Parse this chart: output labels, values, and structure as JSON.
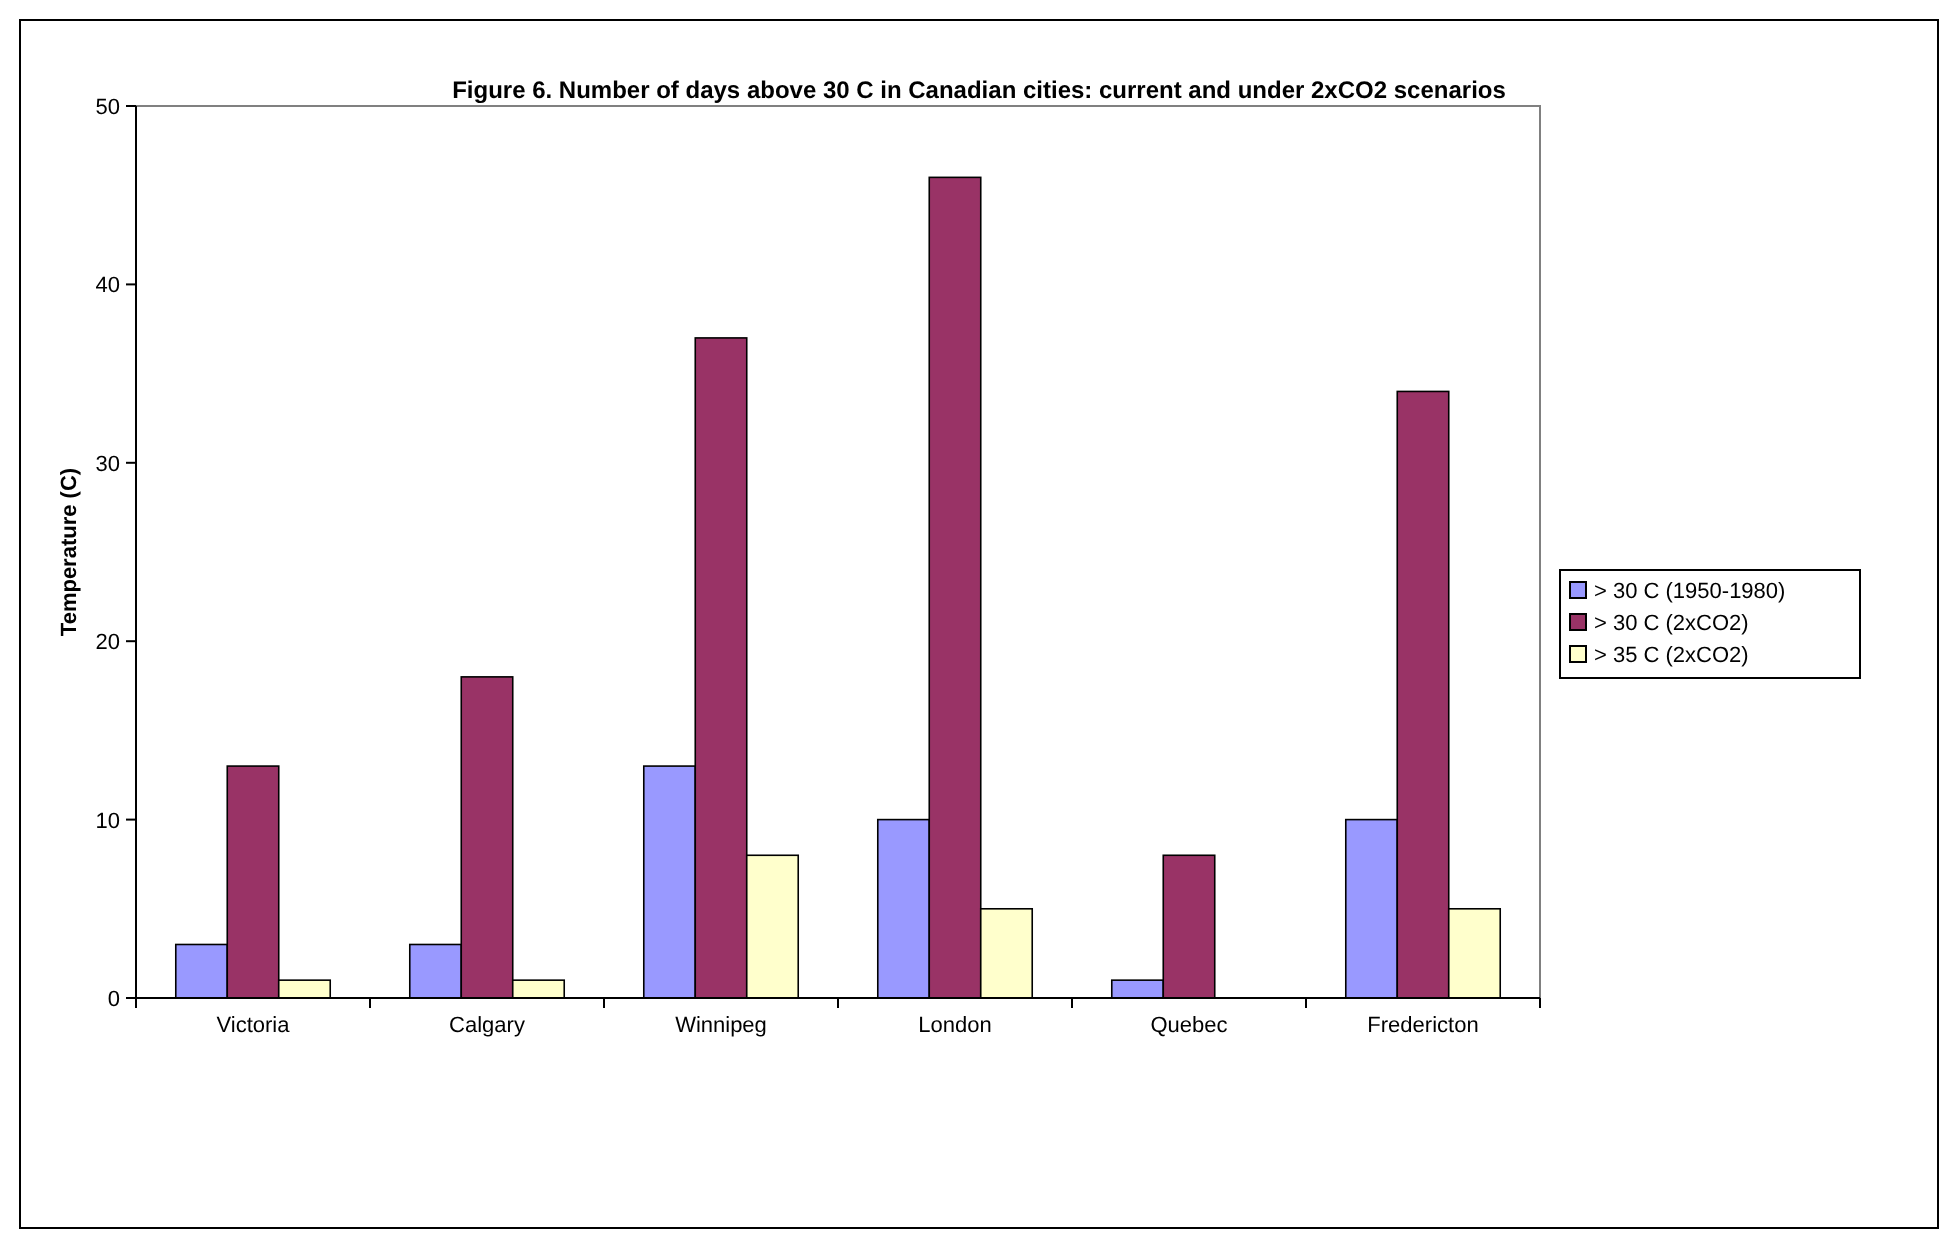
{
  "chart_data": {
    "type": "bar",
    "title": "Figure 6. Number of days above 30 C in Canadian cities: current and under 2xCO2 scenarios",
    "ylabel": "Temperature (C)",
    "categories": [
      "Victoria",
      "Calgary",
      "Winnipeg",
      "London",
      "Quebec",
      "Fredericton"
    ],
    "series": [
      {
        "name": "> 30 C (1950-1980)",
        "color": "#9999ff",
        "values": [
          3,
          3,
          13,
          10,
          1,
          10
        ]
      },
      {
        "name": "> 30 C (2xCO2)",
        "color": "#993366",
        "values": [
          13,
          18,
          37,
          46,
          8,
          34
        ]
      },
      {
        "name": "> 35 C (2xCO2)",
        "color": "#ffffcc",
        "values": [
          1,
          1,
          8,
          5,
          0,
          5
        ]
      }
    ],
    "ylim": [
      0,
      50
    ],
    "yticks": [
      0,
      10,
      20,
      30,
      40,
      50
    ],
    "grid": false,
    "legend": "right"
  }
}
